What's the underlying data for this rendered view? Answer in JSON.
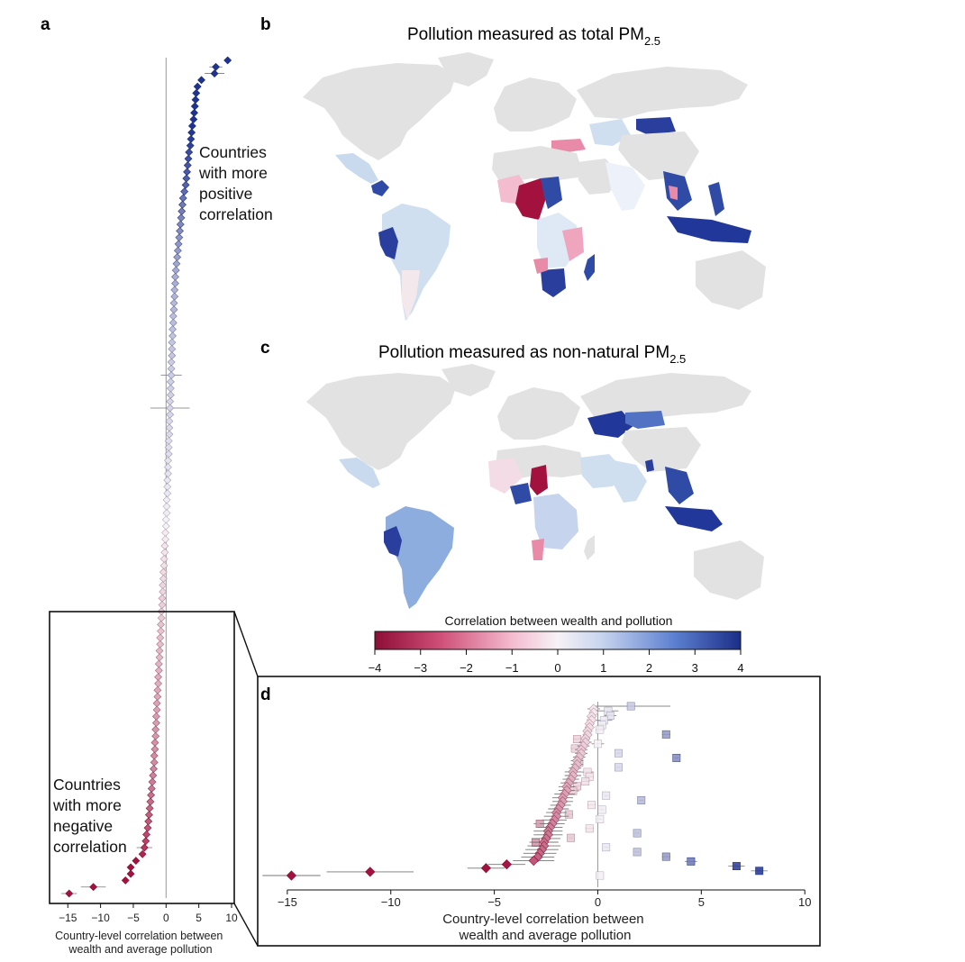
{
  "panels": {
    "a": {
      "letter": "a"
    },
    "b": {
      "letter": "b",
      "title": "Pollution measured as total PM",
      "subscript": "2.5"
    },
    "c": {
      "letter": "c",
      "title": "Pollution measured as non-natural PM",
      "subscript": "2.5"
    },
    "d": {
      "letter": "d"
    }
  },
  "annotations": {
    "positive": [
      "Countries",
      "with more",
      "positive",
      "correlation"
    ],
    "negative": [
      "Countries",
      "with more",
      "negative",
      "correlation"
    ]
  },
  "colorbar": {
    "title": "Correlation between wealth and pollution",
    "ticks": [
      "−4",
      "−3",
      "−2",
      "−1",
      "0",
      "1",
      "2",
      "3",
      "4"
    ],
    "min": -4,
    "max": 4,
    "colors": {
      "neg": "#a3123f",
      "mid": "#f7f2f6",
      "pos": "#1f3391"
    }
  },
  "colors": {
    "land": "#e2e2e2",
    "coast": "#ffffff",
    "axis": "#7f7f7f",
    "box": "#111111",
    "zero_line": "#999999"
  },
  "chart_data": [
    {
      "type": "scatter",
      "panel": "a",
      "title": "",
      "xlabel": [
        "Country-level correlation between",
        "wealth and average pollution"
      ],
      "ylabel": "",
      "xlim": [
        -16,
        10
      ],
      "xticks": [
        -15,
        -10,
        -5,
        0,
        5,
        10
      ],
      "xtick_labels": [
        "−15",
        "−10",
        "−5",
        "0",
        "5",
        "10"
      ],
      "marker": "diamond",
      "points": [
        [
          9.4,
          0.2
        ],
        [
          7.6,
          1.0
        ],
        [
          7.4,
          1.5
        ],
        [
          5.4,
          0.0
        ],
        [
          4.8,
          0.0
        ],
        [
          4.6,
          0.0
        ],
        [
          4.5,
          0.0
        ],
        [
          4.4,
          0.0
        ],
        [
          4.3,
          0.0
        ],
        [
          4.2,
          0.0
        ],
        [
          4.0,
          0.0
        ],
        [
          3.9,
          0.0
        ],
        [
          3.8,
          0.0
        ],
        [
          3.7,
          0.0
        ],
        [
          3.5,
          0.0
        ],
        [
          3.4,
          0.0
        ],
        [
          3.3,
          0.0
        ],
        [
          3.2,
          0.0
        ],
        [
          3.1,
          0.0
        ],
        [
          3.0,
          0.0
        ],
        [
          2.8,
          0.0
        ],
        [
          2.6,
          0.0
        ],
        [
          2.5,
          0.0
        ],
        [
          2.4,
          0.0
        ],
        [
          2.3,
          0.0
        ],
        [
          2.2,
          0.3
        ],
        [
          2.1,
          0.0
        ],
        [
          2.0,
          0.0
        ],
        [
          1.9,
          0.0
        ],
        [
          1.8,
          0.0
        ],
        [
          1.7,
          0.0
        ],
        [
          1.6,
          0.0
        ],
        [
          1.5,
          0.0
        ],
        [
          1.4,
          0.0
        ],
        [
          1.4,
          0.0
        ],
        [
          1.3,
          0.0
        ],
        [
          1.3,
          0.0
        ],
        [
          1.2,
          0.0
        ],
        [
          1.2,
          0.0
        ],
        [
          1.1,
          0.0
        ],
        [
          1.1,
          0.0
        ],
        [
          1.0,
          0.0
        ],
        [
          1.0,
          0.0
        ],
        [
          0.9,
          0.0
        ],
        [
          0.9,
          0.0
        ],
        [
          0.9,
          0.0
        ],
        [
          0.8,
          0.0
        ],
        [
          0.8,
          0.0
        ],
        [
          0.8,
          1.6
        ],
        [
          0.7,
          0.0
        ],
        [
          0.7,
          0.0
        ],
        [
          0.7,
          0.0
        ],
        [
          0.6,
          0.0
        ],
        [
          0.6,
          3.0
        ],
        [
          0.6,
          0.0
        ],
        [
          0.5,
          0.0
        ],
        [
          0.5,
          0.0
        ],
        [
          0.5,
          0.0
        ],
        [
          0.4,
          0.0
        ],
        [
          0.4,
          0.0
        ],
        [
          0.4,
          0.0
        ],
        [
          0.3,
          0.0
        ],
        [
          0.3,
          0.0
        ],
        [
          0.3,
          0.0
        ],
        [
          0.2,
          0.0
        ],
        [
          0.2,
          0.0
        ],
        [
          0.2,
          0.0
        ],
        [
          0.1,
          0.0
        ],
        [
          0.1,
          0.0
        ],
        [
          0.1,
          0.0
        ],
        [
          0.0,
          0.0
        ],
        [
          0.0,
          0.0
        ],
        [
          -0.1,
          0.0
        ],
        [
          -0.1,
          0.0
        ],
        [
          -0.2,
          0.0
        ],
        [
          -0.2,
          0.0
        ],
        [
          -0.3,
          0.0
        ],
        [
          -0.3,
          0.0
        ],
        [
          -0.4,
          0.0
        ],
        [
          -0.4,
          0.0
        ],
        [
          -0.5,
          0.0
        ],
        [
          -0.5,
          0.0
        ],
        [
          -0.6,
          0.0
        ],
        [
          -0.6,
          0.0
        ],
        [
          -0.7,
          0.0
        ],
        [
          -0.7,
          0.0
        ],
        [
          -0.8,
          0.0
        ],
        [
          -0.8,
          0.0
        ],
        [
          -0.9,
          0.0
        ],
        [
          -0.9,
          0.0
        ],
        [
          -1.0,
          0.0
        ],
        [
          -1.0,
          0.0
        ],
        [
          -1.1,
          0.0
        ],
        [
          -1.1,
          0.0
        ],
        [
          -1.2,
          0.0
        ],
        [
          -1.2,
          0.0
        ],
        [
          -1.3,
          0.0
        ],
        [
          -1.3,
          0.0
        ],
        [
          -1.4,
          0.0
        ],
        [
          -1.4,
          0.0
        ],
        [
          -1.5,
          0.0
        ],
        [
          -1.5,
          0.0
        ],
        [
          -1.6,
          0.0
        ],
        [
          -1.6,
          0.0
        ],
        [
          -1.7,
          0.0
        ],
        [
          -1.7,
          0.0
        ],
        [
          -1.8,
          0.0
        ],
        [
          -1.8,
          0.0
        ],
        [
          -1.9,
          0.0
        ],
        [
          -2.0,
          0.0
        ],
        [
          -2.1,
          0.0
        ],
        [
          -2.2,
          0.0
        ],
        [
          -2.3,
          0.0
        ],
        [
          -2.4,
          0.0
        ],
        [
          -2.5,
          0.0
        ],
        [
          -2.6,
          0.0
        ],
        [
          -2.7,
          0.0
        ],
        [
          -2.8,
          0.0
        ],
        [
          -3.0,
          0.0
        ],
        [
          -3.1,
          0.0
        ],
        [
          -3.3,
          1.2
        ],
        [
          -3.6,
          0.0
        ],
        [
          -4.6,
          0.0
        ],
        [
          -5.4,
          0.0
        ],
        [
          -5.4,
          0.0
        ],
        [
          -6.2,
          0.0
        ],
        [
          -11.1,
          1.9
        ],
        [
          -14.8,
          1.2
        ]
      ]
    },
    {
      "type": "scatter",
      "panel": "d",
      "title": "",
      "xlabel": [
        "Country-level correlation between",
        "wealth and average pollution"
      ],
      "ylabel": "",
      "xlim": [
        -16.3,
        10.6
      ],
      "xticks": [
        -15,
        -10,
        -5,
        0,
        5,
        10
      ],
      "xtick_labels": [
        "−15",
        "−10",
        "−5",
        "0",
        "5",
        "10"
      ],
      "series_diamond": [
        [
          -0.2,
          0.3
        ],
        [
          -0.2,
          0.2
        ],
        [
          -0.3,
          0.2
        ],
        [
          -0.3,
          0.2
        ],
        [
          -0.4,
          0.2
        ],
        [
          -0.4,
          0.2
        ],
        [
          -0.5,
          0.2
        ],
        [
          -0.5,
          0.2
        ],
        [
          -0.6,
          0.2
        ],
        [
          -0.6,
          0.3
        ],
        [
          -0.7,
          0.3
        ],
        [
          -0.8,
          0.3
        ],
        [
          -0.8,
          0.3
        ],
        [
          -0.9,
          0.3
        ],
        [
          -1.0,
          0.3
        ],
        [
          -1.0,
          0.3
        ],
        [
          -1.1,
          0.3
        ],
        [
          -1.2,
          0.4
        ],
        [
          -1.2,
          0.4
        ],
        [
          -1.3,
          0.4
        ],
        [
          -1.4,
          0.4
        ],
        [
          -1.5,
          0.4
        ],
        [
          -1.5,
          0.4
        ],
        [
          -1.6,
          0.5
        ],
        [
          -1.7,
          0.5
        ],
        [
          -1.7,
          0.5
        ],
        [
          -1.8,
          0.5
        ],
        [
          -1.9,
          0.5
        ],
        [
          -2.0,
          0.5
        ],
        [
          -2.0,
          0.6
        ],
        [
          -2.1,
          0.6
        ],
        [
          -2.2,
          0.6
        ],
        [
          -2.3,
          0.6
        ],
        [
          -2.4,
          0.7
        ],
        [
          -2.4,
          0.7
        ],
        [
          -2.5,
          0.7
        ],
        [
          -2.6,
          0.7
        ],
        [
          -2.6,
          0.8
        ],
        [
          -2.7,
          0.8
        ],
        [
          -2.8,
          0.8
        ],
        [
          -2.9,
          0.8
        ],
        [
          -3.1,
          1.0
        ],
        [
          -4.4,
          0.9
        ],
        [
          -5.4,
          0.9
        ],
        [
          -11.0,
          2.1
        ],
        [
          -14.8,
          1.4
        ]
      ],
      "series_square": [
        [
          1.6,
          1.9
        ],
        [
          0.5,
          0.5
        ],
        [
          0.6,
          0.3
        ],
        [
          0.3,
          0.4
        ],
        [
          0.2,
          0.2
        ],
        [
          0.1,
          0.2
        ],
        [
          3.3,
          0.2
        ],
        [
          -1.0,
          0.2
        ],
        [
          0.0,
          0.3
        ],
        [
          -1.1,
          0.2
        ],
        [
          1.0,
          0.1
        ],
        [
          3.8,
          0.1
        ],
        [
          -0.9,
          0.2
        ],
        [
          1.0,
          0.1
        ],
        [
          -0.5,
          0.3
        ],
        [
          -0.4,
          0.2
        ],
        [
          -0.6,
          0.2
        ],
        [
          -1.0,
          0.2
        ],
        [
          -1.2,
          0.3
        ],
        [
          0.4,
          0.1
        ],
        [
          2.1,
          0.1
        ],
        [
          -0.3,
          0.2
        ],
        [
          0.2,
          0.1
        ],
        [
          -1.4,
          0.2
        ],
        [
          0.1,
          0.1
        ],
        [
          -2.8,
          0.3
        ],
        [
          -0.4,
          0.2
        ],
        [
          1.9,
          0.1
        ],
        [
          -1.3,
          0.1
        ],
        [
          -3.0,
          0.2
        ],
        [
          0.4,
          0.1
        ],
        [
          1.9,
          0.1
        ],
        [
          3.3,
          0.2
        ],
        [
          4.5,
          0.3
        ],
        [
          6.7,
          0.4
        ],
        [
          7.8,
          0.4
        ],
        [
          0.1,
          0.0
        ]
      ]
    }
  ]
}
